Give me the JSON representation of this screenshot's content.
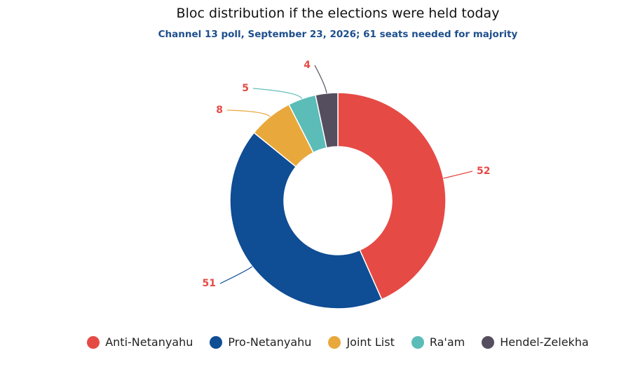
{
  "chart_data": {
    "type": "pie",
    "title": "Bloc distribution if the elections were held today",
    "subtitle": "Channel 13 poll, September 23, 2026; 61 seats needed for majority",
    "categories": [
      "Anti-Netanyahu",
      "Pro-Netanyahu",
      "Joint List",
      "Ra'am",
      "Hendel-Zelekha"
    ],
    "values": [
      52,
      51,
      8,
      5,
      4
    ],
    "colors": [
      "#e64a45",
      "#0f4d94",
      "#e9a83b",
      "#5bbcb8",
      "#554e5f"
    ],
    "label_color": "#e64a45",
    "hole": true,
    "legend_position": "bottom"
  }
}
